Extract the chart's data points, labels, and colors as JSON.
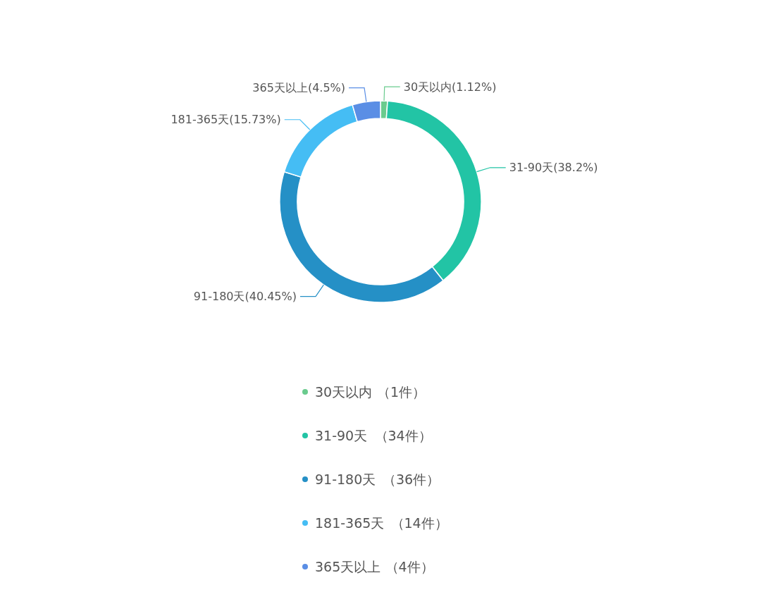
{
  "chart_data": {
    "type": "donut",
    "categories": [
      "30天以内",
      "31-90天",
      "91-180天",
      "181-365天",
      "365天以上"
    ],
    "values": [
      1.12,
      38.2,
      40.45,
      15.73,
      4.5
    ],
    "value_labels": [
      "(1.12%)",
      "(38.2%)",
      "(40.45%)",
      "(15.73%)",
      "(4.5%)"
    ],
    "annotations": [
      "（1件）",
      "（34件）",
      "（36件）",
      "（14件）",
      "（4件）"
    ],
    "colors": [
      "#6acb8e",
      "#22c4a5",
      "#2590c6",
      "#45bdf4",
      "#5a8ee5"
    ],
    "legend": "bottom"
  }
}
